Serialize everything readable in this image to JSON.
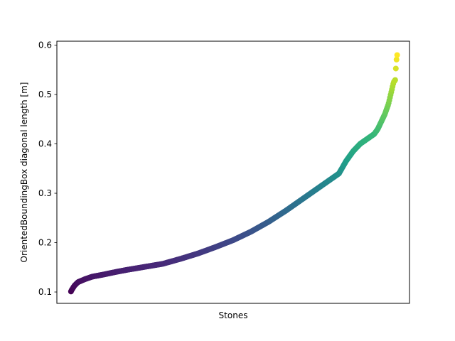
{
  "chart_data": {
    "type": "scatter",
    "title": "",
    "xlabel": "Stones",
    "ylabel": "OrientedBoundingBox diagonal length [m]",
    "xlim": [
      0,
      1
    ],
    "ylim": [
      0.077,
      0.608
    ],
    "x_ticks_visible": false,
    "y_ticks": [
      0.1,
      0.2,
      0.3,
      0.4,
      0.5,
      0.6
    ],
    "y_tick_labels": [
      "0.1",
      "0.2",
      "0.3",
      "0.4",
      "0.5",
      "0.6"
    ],
    "grid": false,
    "colormap": "viridis",
    "color_by": "y",
    "marker_size": 4,
    "curve_anchors": {
      "x": [
        0.04,
        0.042,
        0.05,
        0.06,
        0.08,
        0.1,
        0.13,
        0.17,
        0.2,
        0.25,
        0.3,
        0.35,
        0.4,
        0.45,
        0.5,
        0.55,
        0.6,
        0.65,
        0.7,
        0.75,
        0.8,
        0.82,
        0.84,
        0.86,
        0.88,
        0.9,
        0.91,
        0.92,
        0.93,
        0.94,
        0.945,
        0.95,
        0.955,
        0.96,
        0.962,
        0.965
      ],
      "y": [
        0.101,
        0.104,
        0.113,
        0.12,
        0.126,
        0.131,
        0.135,
        0.141,
        0.145,
        0.151,
        0.157,
        0.167,
        0.178,
        0.191,
        0.205,
        0.222,
        0.242,
        0.265,
        0.29,
        0.315,
        0.34,
        0.365,
        0.385,
        0.4,
        0.41,
        0.42,
        0.43,
        0.445,
        0.46,
        0.48,
        0.495,
        0.51,
        0.525,
        0.53,
        0.565,
        0.58
      ]
    },
    "point_count": 500
  }
}
